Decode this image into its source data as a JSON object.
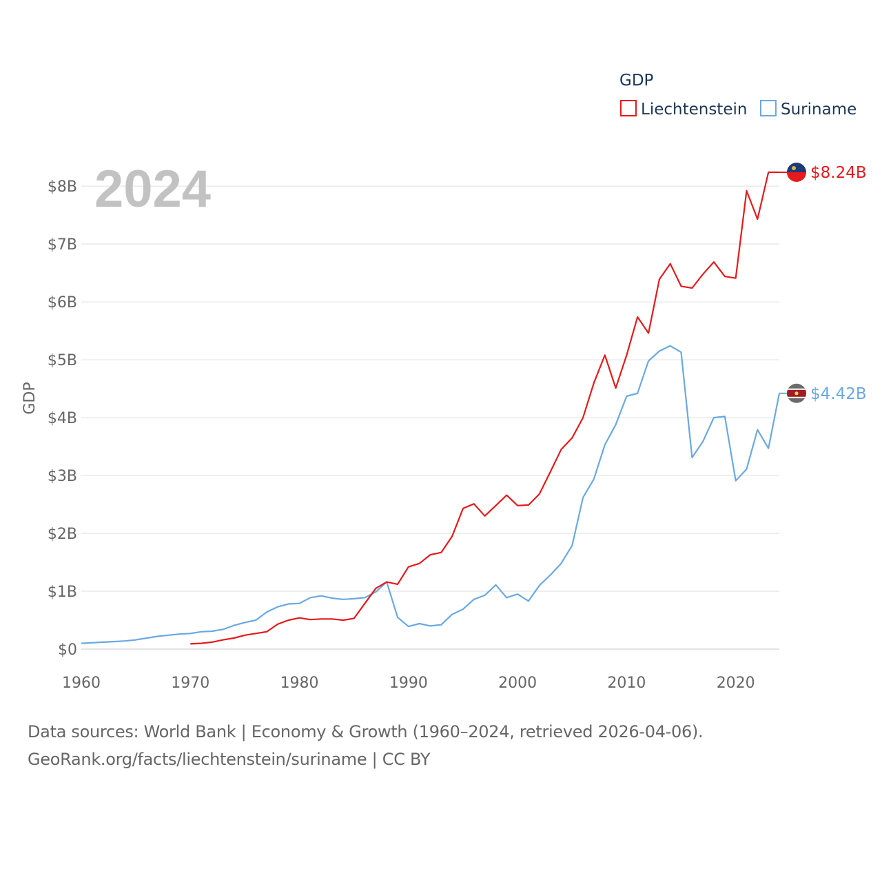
{
  "legend": {
    "title": "GDP",
    "items": [
      {
        "label": "Liechtenstein",
        "color": "#e41a1c"
      },
      {
        "label": "Suriname",
        "color": "#6aa8e2"
      }
    ]
  },
  "year_label": "2024",
  "end_labels": {
    "liechtenstein": "$8.24B",
    "suriname": "$4.42B"
  },
  "source": {
    "line1": "Data sources: World Bank | Economy & Growth (1960–2024, retrieved 2026-04-06).",
    "line2": "GeoRank.org/facts/liechtenstein/suriname | CC BY"
  },
  "chart_data": {
    "type": "line",
    "title": "GDP",
    "xlabel": "",
    "ylabel": "GDP",
    "xlim": [
      1960,
      2024
    ],
    "ylim": [
      0,
      8.24
    ],
    "x_ticks": [
      1960,
      1970,
      1980,
      1990,
      2000,
      2010,
      2020
    ],
    "y_ticks": [
      0,
      1,
      2,
      3,
      4,
      5,
      6,
      7,
      8
    ],
    "y_tick_labels": [
      "$0",
      "$1B",
      "$2B",
      "$3B",
      "$4B",
      "$5B",
      "$6B",
      "$7B",
      "$8B"
    ],
    "grid": true,
    "legend_position": "top-right",
    "units": "billions USD",
    "series": [
      {
        "name": "Liechtenstein",
        "color": "#e41a1c",
        "x": [
          1970,
          1971,
          1972,
          1973,
          1974,
          1975,
          1976,
          1977,
          1978,
          1979,
          1980,
          1981,
          1982,
          1983,
          1984,
          1985,
          1986,
          1987,
          1988,
          1989,
          1990,
          1991,
          1992,
          1993,
          1994,
          1995,
          1996,
          1997,
          1998,
          1999,
          2000,
          2001,
          2002,
          2003,
          2004,
          2005,
          2006,
          2007,
          2008,
          2009,
          2010,
          2011,
          2012,
          2013,
          2014,
          2015,
          2016,
          2017,
          2018,
          2019,
          2020,
          2021,
          2022,
          2023,
          2024
        ],
        "values": [
          0.09,
          0.1,
          0.12,
          0.16,
          0.19,
          0.24,
          0.27,
          0.3,
          0.43,
          0.5,
          0.54,
          0.51,
          0.52,
          0.52,
          0.5,
          0.53,
          0.79,
          1.05,
          1.16,
          1.12,
          1.42,
          1.48,
          1.63,
          1.67,
          1.95,
          2.43,
          2.51,
          2.3,
          2.48,
          2.66,
          2.48,
          2.49,
          2.68,
          3.06,
          3.45,
          3.65,
          4.0,
          4.6,
          5.08,
          4.51,
          5.08,
          5.74,
          5.46,
          6.39,
          6.66,
          6.27,
          6.24,
          6.48,
          6.69,
          6.44,
          6.41,
          7.92,
          7.43,
          8.24,
          8.24
        ]
      },
      {
        "name": "Suriname",
        "color": "#6aa8e2",
        "x": [
          1960,
          1961,
          1962,
          1963,
          1964,
          1965,
          1966,
          1967,
          1968,
          1969,
          1970,
          1971,
          1972,
          1973,
          1974,
          1975,
          1976,
          1977,
          1978,
          1979,
          1980,
          1981,
          1982,
          1983,
          1984,
          1985,
          1986,
          1987,
          1988,
          1989,
          1990,
          1991,
          1992,
          1993,
          1994,
          1995,
          1996,
          1997,
          1998,
          1999,
          2000,
          2001,
          2002,
          2003,
          2004,
          2005,
          2006,
          2007,
          2008,
          2009,
          2010,
          2011,
          2012,
          2013,
          2014,
          2015,
          2016,
          2017,
          2018,
          2019,
          2020,
          2021,
          2022,
          2023,
          2024
        ],
        "values": [
          0.1,
          0.11,
          0.12,
          0.13,
          0.14,
          0.16,
          0.19,
          0.22,
          0.24,
          0.26,
          0.27,
          0.3,
          0.31,
          0.34,
          0.41,
          0.46,
          0.5,
          0.64,
          0.73,
          0.78,
          0.79,
          0.89,
          0.92,
          0.88,
          0.86,
          0.87,
          0.89,
          0.99,
          1.16,
          0.55,
          0.39,
          0.44,
          0.4,
          0.42,
          0.6,
          0.69,
          0.86,
          0.93,
          1.11,
          0.89,
          0.95,
          0.83,
          1.1,
          1.28,
          1.48,
          1.79,
          2.62,
          2.94,
          3.53,
          3.88,
          4.37,
          4.42,
          4.98,
          5.15,
          5.24,
          5.13,
          3.31,
          3.59,
          4.0,
          4.02,
          2.91,
          3.11,
          3.79,
          3.47,
          4.42
        ]
      }
    ]
  }
}
